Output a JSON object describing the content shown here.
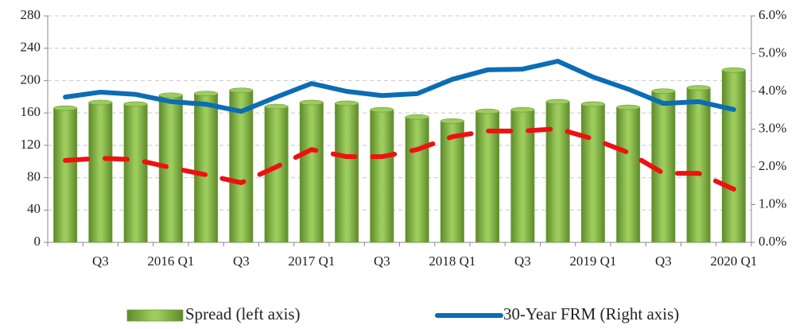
{
  "chart_data": {
    "type": "bar",
    "categories": [
      null,
      "Q3",
      null,
      "2016 Q1",
      null,
      "Q3",
      null,
      "2017 Q1",
      null,
      "Q3",
      null,
      "2018 Q1",
      null,
      "Q3",
      null,
      "2019 Q1",
      null,
      "Q3",
      null,
      "2020 Q1"
    ],
    "series": [
      {
        "name": "Spread (left axis)",
        "color": "#9ccc5c",
        "values": [
          166,
          173,
          171,
          182,
          184,
          188,
          168,
          173,
          172,
          164,
          155,
          150,
          162,
          164,
          174,
          171,
          167,
          187,
          191,
          213
        ]
      },
      {
        "name": "30-Year FRM (Right axis)",
        "type": "line",
        "axis": "y2",
        "color": "#0b6db5",
        "values": [
          3.85,
          3.98,
          3.92,
          3.73,
          3.66,
          3.47,
          3.85,
          4.21,
          4.0,
          3.89,
          3.94,
          4.32,
          4.57,
          4.59,
          4.8,
          4.38,
          4.06,
          3.68,
          3.73,
          3.52
        ]
      },
      {
        "type": "line",
        "dashed": true,
        "axis": "y2",
        "color": "#ee1111",
        "values": [
          2.17,
          2.23,
          2.19,
          1.98,
          1.79,
          1.58,
          2.0,
          2.46,
          2.27,
          2.27,
          2.46,
          2.8,
          2.95,
          2.95,
          3.01,
          2.74,
          2.38,
          1.83,
          1.83,
          1.41
        ]
      }
    ],
    "ylim": [
      0,
      280
    ],
    "yticks": [
      0,
      40,
      80,
      120,
      160,
      200,
      240,
      280
    ],
    "y2lim": [
      0,
      6
    ],
    "y2ticks": [
      {
        "value": 0,
        "label": "0.0%"
      },
      {
        "value": 1,
        "label": "1.0%"
      },
      {
        "value": 2,
        "label": "2.0%"
      },
      {
        "value": 3,
        "label": "3.0%"
      },
      {
        "value": 4,
        "label": "4.0%"
      },
      {
        "value": 5,
        "label": "5.0%"
      },
      {
        "value": 6,
        "label": "6.0%"
      }
    ],
    "grid": true,
    "legend": "bottom"
  }
}
